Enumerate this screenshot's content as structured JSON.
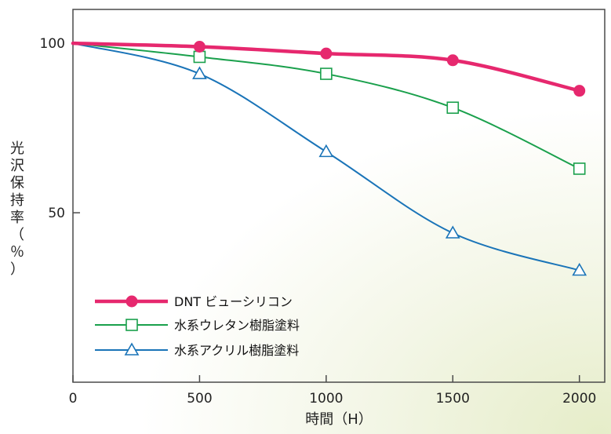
{
  "chart_data": {
    "type": "line",
    "xlabel": "時間（H）",
    "ylabel": "光沢保持率（％）",
    "x": [
      0,
      500,
      1000,
      1500,
      2000
    ],
    "xlim": [
      0,
      2100
    ],
    "ylim": [
      0,
      110
    ],
    "xticks": [
      0,
      500,
      1000,
      1500,
      2000
    ],
    "yticks": [
      50,
      100
    ],
    "xtick_labels": [
      "0",
      "500",
      "1000",
      "1500",
      "2000"
    ],
    "ytick_labels": [
      "50",
      "100"
    ],
    "grid": false,
    "legend_position": "bottom-left",
    "series": [
      {
        "name": "DNT ビューシリコン",
        "values": [
          100,
          99,
          97,
          95,
          86
        ],
        "color": "#e6286e",
        "marker": "filled-circle",
        "line_width": 4.5
      },
      {
        "name": "水系ウレタン樹脂塗料",
        "values": [
          100,
          96,
          91,
          81,
          63
        ],
        "color": "#1aa04c",
        "marker": "open-square",
        "line_width": 2
      },
      {
        "name": "水系アクリル樹脂塗料",
        "values": [
          100,
          91,
          68,
          44,
          33
        ],
        "color": "#1a74b8",
        "marker": "open-triangle",
        "line_width": 2
      }
    ]
  }
}
